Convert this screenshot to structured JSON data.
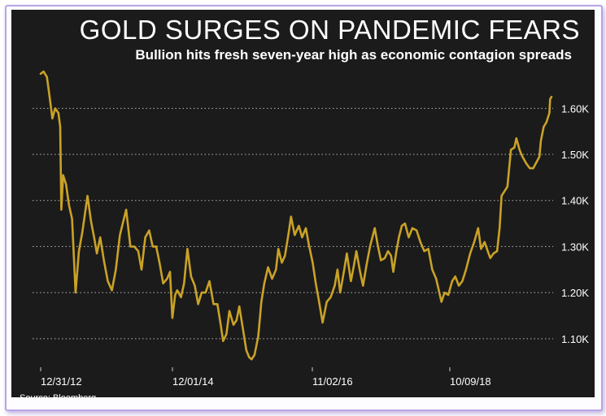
{
  "chart_data": {
    "type": "line",
    "title": "GOLD SURGES ON PANDEMIC FEARS",
    "subtitle": "Bullion hits fresh seven-year high as economic contagion spreads",
    "source": "Source: Bloomberg",
    "x_tick_labels": [
      "12/31/12",
      "12/01/14",
      "11/02/16",
      "10/09/18"
    ],
    "y_tick_labels": [
      "1.10K",
      "1.20K",
      "1.30K",
      "1.40K",
      "1.50K",
      "1.60K"
    ],
    "y_ticks": [
      1100,
      1200,
      1300,
      1400,
      1500,
      1600
    ],
    "ylim": [
      1045,
      1680
    ],
    "grid": "horizontal dotted",
    "line_color": "#c9a227",
    "series": [
      {
        "x": [
          "2012-12-31",
          "2013-01-15",
          "2013-02-01",
          "2013-02-15",
          "2013-03-01",
          "2013-03-15",
          "2013-04-01",
          "2013-04-10",
          "2013-04-16",
          "2013-04-25",
          "2013-05-10",
          "2013-05-25",
          "2013-06-10",
          "2013-06-28",
          "2013-07-15",
          "2013-08-01",
          "2013-08-28",
          "2013-09-15",
          "2013-10-01",
          "2013-10-15",
          "2013-11-01",
          "2013-11-20",
          "2013-12-10",
          "2013-12-31",
          "2014-01-20",
          "2014-02-10",
          "2014-03-14",
          "2014-04-05",
          "2014-04-25",
          "2014-05-15",
          "2014-06-01",
          "2014-06-20",
          "2014-07-10",
          "2014-07-28",
          "2014-08-15",
          "2014-09-01",
          "2014-09-20",
          "2014-10-10",
          "2014-10-25",
          "2014-11-06",
          "2014-11-20",
          "2014-12-01",
          "2014-12-20",
          "2015-01-05",
          "2015-01-22",
          "2015-02-10",
          "2015-03-01",
          "2015-03-18",
          "2015-04-05",
          "2015-04-25",
          "2015-05-15",
          "2015-06-05",
          "2015-06-25",
          "2015-07-10",
          "2015-07-24",
          "2015-08-10",
          "2015-08-25",
          "2015-09-15",
          "2015-10-01",
          "2015-10-15",
          "2015-11-01",
          "2015-11-20",
          "2015-12-04",
          "2015-12-17",
          "2016-01-01",
          "2016-01-20",
          "2016-02-05",
          "2016-02-20",
          "2016-03-10",
          "2016-03-31",
          "2016-04-20",
          "2016-05-02",
          "2016-05-20",
          "2016-06-05",
          "2016-06-24",
          "2016-07-06",
          "2016-07-25",
          "2016-08-15",
          "2016-09-01",
          "2016-09-20",
          "2016-10-05",
          "2016-10-25",
          "2016-11-10",
          "2016-11-25",
          "2016-12-15",
          "2017-01-05",
          "2017-01-25",
          "2017-02-15",
          "2017-03-01",
          "2017-03-15",
          "2017-04-05",
          "2017-04-18",
          "2017-05-09",
          "2017-05-25",
          "2017-06-06",
          "2017-06-25",
          "2017-07-10",
          "2017-07-28",
          "2017-08-15",
          "2017-09-08",
          "2017-09-25",
          "2017-10-10",
          "2017-10-30",
          "2017-11-15",
          "2017-12-01",
          "2017-12-12",
          "2017-12-28",
          "2018-01-10",
          "2018-01-25",
          "2018-02-10",
          "2018-03-01",
          "2018-03-20",
          "2018-04-11",
          "2018-04-30",
          "2018-05-20",
          "2018-06-10",
          "2018-06-30",
          "2018-07-20",
          "2018-08-16",
          "2018-09-01",
          "2018-09-20",
          "2018-10-10",
          "2018-10-26",
          "2018-11-13",
          "2018-12-01",
          "2018-12-20",
          "2019-01-10",
          "2019-01-31",
          "2019-02-20",
          "2019-03-07",
          "2019-03-25",
          "2019-04-10",
          "2019-04-23",
          "2019-05-10",
          "2019-05-28",
          "2019-06-10",
          "2019-06-20",
          "2019-07-05",
          "2019-07-20",
          "2019-08-07",
          "2019-08-25",
          "2019-09-04",
          "2019-09-20",
          "2019-10-05",
          "2019-10-25",
          "2019-11-12",
          "2019-11-29",
          "2019-12-12",
          "2019-12-31",
          "2020-01-08",
          "2020-01-22",
          "2020-02-05",
          "2020-02-20",
          "2020-02-24",
          "2020-03-02"
        ],
        "values": [
          1675,
          1680,
          1668,
          1625,
          1578,
          1600,
          1590,
          1560,
          1380,
          1455,
          1435,
          1390,
          1360,
          1200,
          1290,
          1330,
          1410,
          1355,
          1320,
          1285,
          1320,
          1270,
          1225,
          1205,
          1250,
          1325,
          1380,
          1300,
          1300,
          1290,
          1250,
          1320,
          1335,
          1300,
          1300,
          1265,
          1220,
          1230,
          1245,
          1145,
          1195,
          1205,
          1190,
          1220,
          1295,
          1235,
          1215,
          1175,
          1200,
          1200,
          1225,
          1175,
          1175,
          1135,
          1095,
          1110,
          1160,
          1130,
          1140,
          1170,
          1125,
          1075,
          1060,
          1055,
          1065,
          1105,
          1180,
          1220,
          1255,
          1230,
          1250,
          1295,
          1265,
          1280,
          1330,
          1365,
          1325,
          1345,
          1320,
          1340,
          1305,
          1265,
          1220,
          1185,
          1135,
          1180,
          1190,
          1215,
          1250,
          1200,
          1250,
          1285,
          1225,
          1260,
          1290,
          1245,
          1215,
          1260,
          1300,
          1340,
          1300,
          1270,
          1275,
          1290,
          1280,
          1245,
          1290,
          1320,
          1345,
          1350,
          1320,
          1340,
          1335,
          1310,
          1290,
          1295,
          1250,
          1230,
          1180,
          1200,
          1195,
          1225,
          1235,
          1215,
          1225,
          1250,
          1285,
          1310,
          1340,
          1295,
          1310,
          1290,
          1275,
          1285,
          1290,
          1340,
          1410,
          1420,
          1430,
          1510,
          1515,
          1535,
          1510,
          1495,
          1480,
          1470,
          1470,
          1480,
          1495,
          1530,
          1560,
          1570,
          1590,
          1620,
          1625
        ]
      }
    ]
  }
}
